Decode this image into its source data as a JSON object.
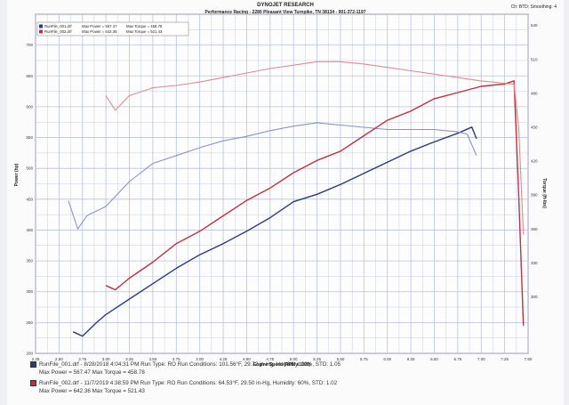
{
  "header": {
    "title": "DYNOJET RESEARCH",
    "address": "Performance Racing - 2280 Pleasant View Turnpike, TN 38134 - 901-372-1197",
    "channel": "Ch: BTD: Smoothing: 4"
  },
  "legend": {
    "run1_name": "RunFile_001.drf",
    "run1_power": "Max Power = 567.47",
    "run1_torque": "Max Torque = 458.78",
    "run2_name": "RunFile_002.drf",
    "run2_power": "Max Power = 642.36",
    "run2_torque": "Max Torque = 521.43"
  },
  "footer": {
    "run1_line": "RunFile_001.drf - 8/28/2018 4:04:31 PM  Run Type: RO  Run Conditions: 101.56°F, 29.72 in-Hg,  Humidity: 22%,  STD: 1.05",
    "run1_max": "Max Power = 567.47  Max Torque = 458.78",
    "run2_line": "RunFile_002.drf - 11/7/2019 4:38:59 PM  Run Type: RO  Run Conditions: 64.53°F, 29.50 in-Hg,  Humidity: 60%,  STD: 1.02",
    "run2_max": "Max Power = 642.36  Max Torque = 521.43"
  },
  "colors": {
    "run1": "#2b3a7a",
    "run2": "#c0303e",
    "run1_light": "#8a93c6",
    "run2_light": "#dd8b93",
    "grid": "#b8c2de"
  },
  "chart_data": {
    "type": "line",
    "title": "",
    "xlabel": "Engine Speed (RPM x1000)",
    "ylabel": "Power (hp)",
    "y2label": "Torque (ft-lbs)",
    "xlim": [
      2.25,
      7.5
    ],
    "ylim": [
      200,
      750
    ],
    "y2lim": [
      250,
      550
    ],
    "xticks": [
      "2.25",
      "2.50",
      "2.75",
      "3.00",
      "3.25",
      "3.50",
      "3.75",
      "4.00",
      "4.25",
      "4.50",
      "4.75",
      "5.00",
      "5.25",
      "5.50",
      "5.75",
      "6.00",
      "6.25",
      "6.50",
      "6.75",
      "7.00",
      "7.25",
      "7.50"
    ],
    "yticks": [
      "200",
      "250",
      "300",
      "350",
      "400",
      "450",
      "500",
      "550",
      "600",
      "650",
      "700"
    ],
    "y2ticks": [
      "300",
      "330",
      "360",
      "390",
      "420",
      "450",
      "480",
      "510",
      "540"
    ],
    "series": [
      {
        "name": "RunFile_001.drf",
        "measure": "power",
        "axis": "left",
        "x": [
          2.65,
          2.75,
          2.9,
          3.0,
          3.25,
          3.5,
          3.75,
          4.0,
          4.25,
          4.5,
          4.75,
          5.0,
          5.25,
          5.5,
          5.75,
          6.0,
          6.25,
          6.5,
          6.75,
          6.9,
          6.95
        ],
        "y": [
          235,
          228,
          250,
          263,
          288,
          313,
          338,
          360,
          378,
          398,
          420,
          446,
          458,
          474,
          492,
          510,
          528,
          543,
          557,
          567,
          548
        ]
      },
      {
        "name": "RunFile_001.drf",
        "measure": "torque",
        "axis": "right",
        "x": [
          2.6,
          2.7,
          2.8,
          3.0,
          3.25,
          3.5,
          3.75,
          4.0,
          4.25,
          4.5,
          4.75,
          5.0,
          5.25,
          5.5,
          5.75,
          6.0,
          6.25,
          6.5,
          6.75,
          6.85,
          6.95
        ],
        "y": [
          385,
          360,
          372,
          380,
          402,
          418,
          425,
          432,
          438,
          442,
          447,
          451,
          454,
          452,
          450,
          448,
          448,
          448,
          446,
          444,
          425
        ]
      },
      {
        "name": "RunFile_002.drf",
        "measure": "power",
        "axis": "left",
        "x": [
          3.0,
          3.1,
          3.25,
          3.5,
          3.75,
          4.0,
          4.25,
          4.5,
          4.75,
          5.0,
          5.25,
          5.5,
          5.75,
          6.0,
          6.25,
          6.5,
          6.75,
          7.0,
          7.25,
          7.35,
          7.4,
          7.45
        ],
        "y": [
          310,
          303,
          322,
          348,
          378,
          398,
          423,
          448,
          468,
          493,
          513,
          528,
          553,
          578,
          593,
          613,
          623,
          633,
          637,
          642,
          458,
          245
        ]
      },
      {
        "name": "RunFile_002.drf",
        "measure": "torque",
        "axis": "right",
        "x": [
          3.0,
          3.1,
          3.25,
          3.5,
          3.75,
          4.0,
          4.25,
          4.5,
          4.75,
          5.0,
          5.25,
          5.5,
          5.75,
          6.0,
          6.25,
          6.5,
          6.75,
          7.0,
          7.25,
          7.35,
          7.4,
          7.45
        ],
        "y": [
          478,
          465,
          478,
          485,
          487,
          490,
          494,
          498,
          502,
          505,
          508,
          508,
          506,
          503,
          500,
          497,
          494,
          491,
          489,
          488,
          450,
          355
        ]
      }
    ]
  }
}
